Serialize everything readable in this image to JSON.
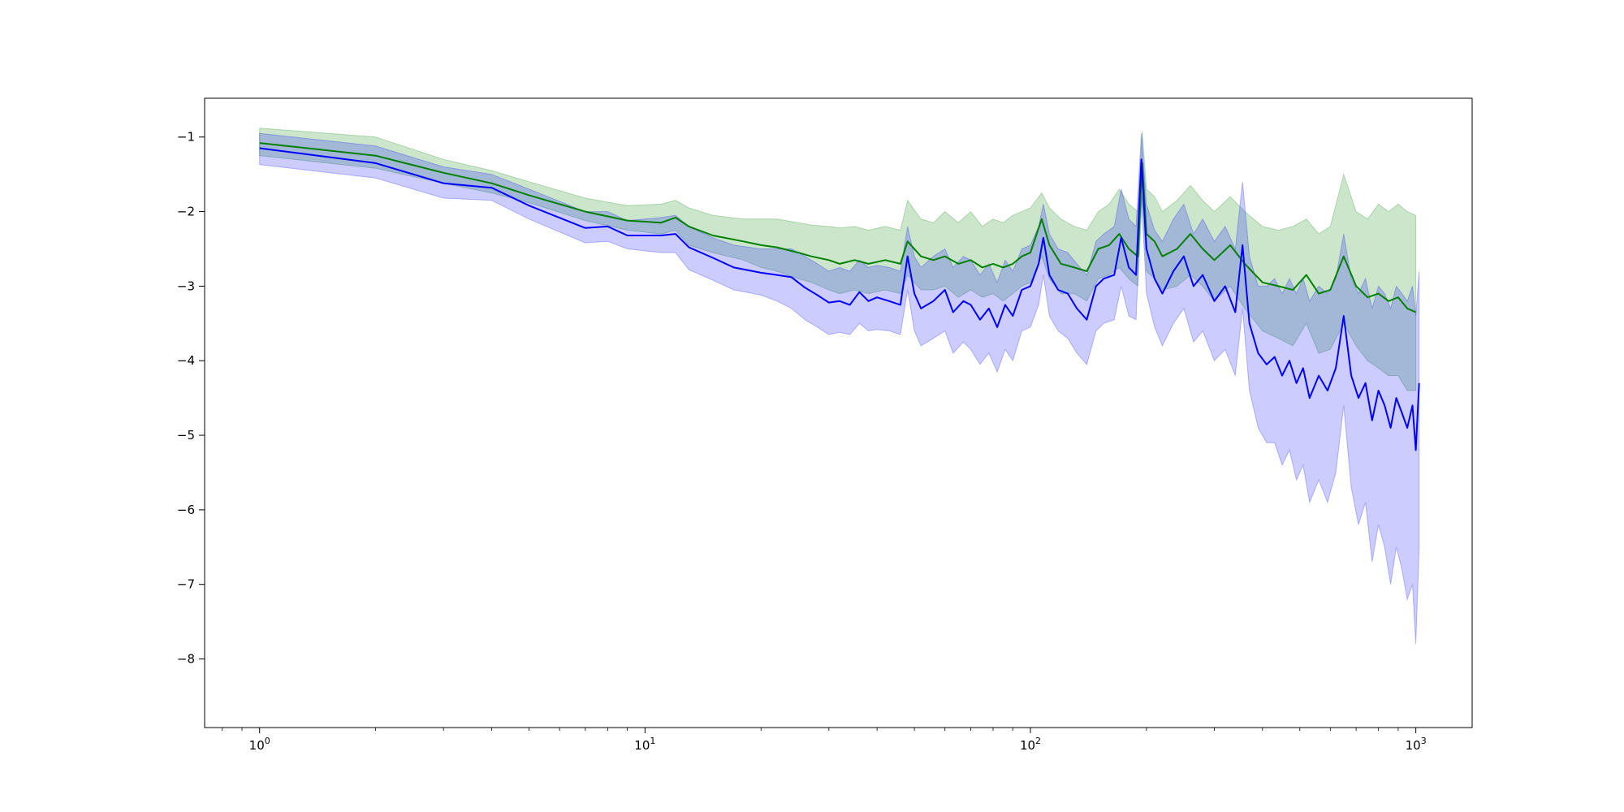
{
  "chart_data": {
    "type": "line",
    "title": "",
    "xlabel": "",
    "ylabel": "",
    "x_scale": "log",
    "xlim": [
      0.72,
      1400
    ],
    "ylim": [
      -8.92,
      -0.48
    ],
    "grid": false,
    "legend": "none",
    "x_ticks": [
      {
        "value": 1,
        "base": "10",
        "exp": "0"
      },
      {
        "value": 10,
        "base": "10",
        "exp": "1"
      },
      {
        "value": 100,
        "base": "10",
        "exp": "2"
      },
      {
        "value": 1000,
        "base": "10",
        "exp": "3"
      }
    ],
    "y_ticks": [
      {
        "value": -1,
        "label": "−1"
      },
      {
        "value": -2,
        "label": "−2"
      },
      {
        "value": -3,
        "label": "−3"
      },
      {
        "value": -4,
        "label": "−4"
      },
      {
        "value": -5,
        "label": "−5"
      },
      {
        "value": -6,
        "label": "−6"
      },
      {
        "value": -7,
        "label": "−7"
      },
      {
        "value": -8,
        "label": "−8"
      }
    ],
    "series": [
      {
        "color": "#008000",
        "band_color": "#008000",
        "band_opacity": 0.2,
        "points": [
          [
            1,
            -1.08,
            -0.88,
            -1.25
          ],
          [
            2,
            -1.25,
            -1.0,
            -1.42
          ],
          [
            3,
            -1.48,
            -1.3,
            -1.62
          ],
          [
            4,
            -1.62,
            -1.45,
            -1.75
          ],
          [
            5,
            -1.78,
            -1.6,
            -1.88
          ],
          [
            7,
            -2.0,
            -1.82,
            -2.12
          ],
          [
            9,
            -2.12,
            -1.92,
            -2.25
          ],
          [
            11,
            -2.15,
            -1.9,
            -2.3
          ],
          [
            12,
            -2.08,
            -1.85,
            -2.25
          ],
          [
            13,
            -2.2,
            -1.95,
            -2.45
          ],
          [
            15,
            -2.32,
            -2.05,
            -2.55
          ],
          [
            18,
            -2.4,
            -2.1,
            -2.65
          ],
          [
            20,
            -2.45,
            -2.1,
            -2.75
          ],
          [
            22,
            -2.48,
            -2.1,
            -2.8
          ],
          [
            25,
            -2.55,
            -2.15,
            -2.9
          ],
          [
            27,
            -2.6,
            -2.18,
            -2.95
          ],
          [
            30,
            -2.65,
            -2.2,
            -3.05
          ],
          [
            32,
            -2.7,
            -2.22,
            -3.1
          ],
          [
            35,
            -2.65,
            -2.2,
            -3.05
          ],
          [
            38,
            -2.7,
            -2.25,
            -3.1
          ],
          [
            42,
            -2.65,
            -2.2,
            -3.05
          ],
          [
            46,
            -2.7,
            -2.25,
            -3.1
          ],
          [
            48,
            -2.4,
            -1.85,
            -2.85
          ],
          [
            52,
            -2.6,
            -2.1,
            -3.05
          ],
          [
            56,
            -2.65,
            -2.15,
            -3.05
          ],
          [
            60,
            -2.6,
            -2.0,
            -3.0
          ],
          [
            65,
            -2.7,
            -2.15,
            -3.15
          ],
          [
            70,
            -2.65,
            -2.0,
            -3.05
          ],
          [
            75,
            -2.75,
            -2.2,
            -3.15
          ],
          [
            80,
            -2.7,
            -2.1,
            -3.1
          ],
          [
            85,
            -2.75,
            -2.15,
            -3.2
          ],
          [
            90,
            -2.7,
            -2.05,
            -3.1
          ],
          [
            95,
            -2.6,
            -2.0,
            -3.0
          ],
          [
            100,
            -2.55,
            -1.95,
            -2.95
          ],
          [
            107,
            -2.1,
            -1.75,
            -2.6
          ],
          [
            112,
            -2.45,
            -1.95,
            -2.9
          ],
          [
            120,
            -2.7,
            -2.1,
            -3.1
          ],
          [
            130,
            -2.75,
            -2.2,
            -3.1
          ],
          [
            140,
            -2.8,
            -2.25,
            -3.2
          ],
          [
            150,
            -2.5,
            -2.0,
            -2.9
          ],
          [
            160,
            -2.45,
            -1.9,
            -2.85
          ],
          [
            170,
            -2.3,
            -1.7,
            -2.75
          ],
          [
            180,
            -2.5,
            -1.9,
            -2.9
          ],
          [
            190,
            -2.6,
            -2.0,
            -3.0
          ],
          [
            195,
            -1.35,
            -0.92,
            -1.8
          ],
          [
            200,
            -2.3,
            -1.7,
            -2.8
          ],
          [
            210,
            -2.4,
            -1.8,
            -2.9
          ],
          [
            220,
            -2.6,
            -2.0,
            -3.05
          ],
          [
            240,
            -2.5,
            -1.85,
            -3.0
          ],
          [
            260,
            -2.3,
            -1.65,
            -2.85
          ],
          [
            280,
            -2.5,
            -1.85,
            -3.0
          ],
          [
            300,
            -2.65,
            -2.0,
            -3.2
          ],
          [
            330,
            -2.45,
            -1.8,
            -3.0
          ],
          [
            360,
            -2.7,
            -2.0,
            -3.3
          ],
          [
            400,
            -2.95,
            -2.2,
            -3.6
          ],
          [
            440,
            -3.0,
            -2.25,
            -3.7
          ],
          [
            480,
            -3.05,
            -2.2,
            -3.8
          ],
          [
            520,
            -2.85,
            -2.1,
            -3.5
          ],
          [
            560,
            -3.1,
            -2.3,
            -3.9
          ],
          [
            600,
            -3.05,
            -2.2,
            -3.85
          ],
          [
            650,
            -2.6,
            -1.5,
            -3.5
          ],
          [
            700,
            -3.0,
            -2.0,
            -3.8
          ],
          [
            750,
            -3.15,
            -2.1,
            -4.0
          ],
          [
            800,
            -3.1,
            -1.9,
            -4.1
          ],
          [
            850,
            -3.2,
            -2.0,
            -4.2
          ],
          [
            900,
            -3.15,
            -1.9,
            -4.2
          ],
          [
            950,
            -3.3,
            -2.0,
            -4.4
          ],
          [
            1000,
            -3.35,
            -2.05,
            -4.4
          ]
        ]
      },
      {
        "color": "#0000ff",
        "band_color": "#0000ff",
        "band_opacity": 0.2,
        "points": [
          [
            1,
            -1.15,
            -0.95,
            -1.37
          ],
          [
            2,
            -1.35,
            -1.12,
            -1.55
          ],
          [
            3,
            -1.62,
            -1.4,
            -1.82
          ],
          [
            4,
            -1.68,
            -1.5,
            -1.85
          ],
          [
            5,
            -1.92,
            -1.7,
            -2.1
          ],
          [
            7,
            -2.22,
            -2.0,
            -2.42
          ],
          [
            8,
            -2.2,
            -2.0,
            -2.4
          ],
          [
            9,
            -2.32,
            -2.12,
            -2.5
          ],
          [
            11,
            -2.32,
            -2.08,
            -2.55
          ],
          [
            12,
            -2.3,
            -2.05,
            -2.55
          ],
          [
            13,
            -2.48,
            -2.2,
            -2.78
          ],
          [
            15,
            -2.62,
            -2.35,
            -2.92
          ],
          [
            17,
            -2.75,
            -2.45,
            -3.05
          ],
          [
            20,
            -2.82,
            -2.5,
            -3.12
          ],
          [
            22,
            -2.85,
            -2.5,
            -3.2
          ],
          [
            24,
            -2.88,
            -2.5,
            -3.3
          ],
          [
            26,
            -3.02,
            -2.6,
            -3.45
          ],
          [
            28,
            -3.12,
            -2.7,
            -3.55
          ],
          [
            30,
            -3.22,
            -2.8,
            -3.65
          ],
          [
            32,
            -3.2,
            -2.75,
            -3.62
          ],
          [
            34,
            -3.25,
            -2.8,
            -3.65
          ],
          [
            36,
            -3.08,
            -2.65,
            -3.5
          ],
          [
            38,
            -3.2,
            -2.75,
            -3.6
          ],
          [
            40,
            -3.15,
            -2.72,
            -3.58
          ],
          [
            43,
            -3.2,
            -2.75,
            -3.6
          ],
          [
            46,
            -3.25,
            -2.8,
            -3.65
          ],
          [
            48,
            -2.6,
            -2.2,
            -3.05
          ],
          [
            50,
            -3.1,
            -2.6,
            -3.6
          ],
          [
            52,
            -3.3,
            -2.75,
            -3.8
          ],
          [
            56,
            -3.2,
            -2.6,
            -3.7
          ],
          [
            60,
            -3.05,
            -2.5,
            -3.6
          ],
          [
            63,
            -3.35,
            -2.75,
            -3.9
          ],
          [
            67,
            -3.2,
            -2.6,
            -3.75
          ],
          [
            70,
            -3.25,
            -2.65,
            -3.85
          ],
          [
            74,
            -3.45,
            -2.85,
            -4.05
          ],
          [
            78,
            -3.3,
            -2.7,
            -3.9
          ],
          [
            82,
            -3.55,
            -2.95,
            -4.15
          ],
          [
            86,
            -3.25,
            -2.65,
            -3.85
          ],
          [
            90,
            -3.4,
            -2.8,
            -4.0
          ],
          [
            95,
            -3.05,
            -2.5,
            -3.6
          ],
          [
            100,
            -3.0,
            -2.45,
            -3.55
          ],
          [
            105,
            -2.7,
            -2.2,
            -3.25
          ],
          [
            108,
            -2.35,
            -1.9,
            -2.85
          ],
          [
            112,
            -2.85,
            -2.3,
            -3.4
          ],
          [
            118,
            -3.05,
            -2.5,
            -3.6
          ],
          [
            125,
            -3.1,
            -2.55,
            -3.7
          ],
          [
            132,
            -3.3,
            -2.7,
            -3.9
          ],
          [
            140,
            -3.45,
            -2.85,
            -4.05
          ],
          [
            148,
            -3.0,
            -2.4,
            -3.6
          ],
          [
            155,
            -2.9,
            -2.3,
            -3.5
          ],
          [
            165,
            -2.85,
            -2.2,
            -3.45
          ],
          [
            172,
            -2.35,
            -1.7,
            -3.0
          ],
          [
            180,
            -2.75,
            -2.1,
            -3.4
          ],
          [
            188,
            -2.85,
            -2.2,
            -3.45
          ],
          [
            194,
            -1.3,
            -0.95,
            -1.8
          ],
          [
            200,
            -2.5,
            -1.9,
            -3.1
          ],
          [
            210,
            -2.9,
            -2.25,
            -3.55
          ],
          [
            220,
            -3.1,
            -2.4,
            -3.8
          ],
          [
            235,
            -2.8,
            -2.1,
            -3.5
          ],
          [
            250,
            -2.6,
            -1.9,
            -3.3
          ],
          [
            265,
            -3.0,
            -2.3,
            -3.75
          ],
          [
            280,
            -2.85,
            -2.1,
            -3.6
          ],
          [
            300,
            -3.2,
            -2.4,
            -4.0
          ],
          [
            320,
            -3.0,
            -2.2,
            -3.85
          ],
          [
            340,
            -3.35,
            -2.5,
            -4.2
          ],
          [
            355,
            -2.45,
            -1.6,
            -3.3
          ],
          [
            370,
            -3.5,
            -2.6,
            -4.4
          ],
          [
            390,
            -3.9,
            -3.0,
            -4.9
          ],
          [
            410,
            -4.05,
            -3.0,
            -5.1
          ],
          [
            430,
            -3.95,
            -2.9,
            -5.1
          ],
          [
            450,
            -4.2,
            -3.1,
            -5.4
          ],
          [
            470,
            -4.0,
            -2.9,
            -5.2
          ],
          [
            490,
            -4.3,
            -3.1,
            -5.6
          ],
          [
            510,
            -4.1,
            -2.9,
            -5.4
          ],
          [
            530,
            -4.5,
            -3.2,
            -5.9
          ],
          [
            560,
            -4.2,
            -3.0,
            -5.6
          ],
          [
            590,
            -4.4,
            -3.1,
            -5.9
          ],
          [
            620,
            -4.1,
            -2.9,
            -5.5
          ],
          [
            650,
            -3.4,
            -2.3,
            -4.6
          ],
          [
            680,
            -4.2,
            -2.9,
            -5.7
          ],
          [
            710,
            -4.5,
            -3.1,
            -6.2
          ],
          [
            740,
            -4.3,
            -2.9,
            -5.9
          ],
          [
            770,
            -4.8,
            -3.3,
            -6.7
          ],
          [
            800,
            -4.4,
            -3.0,
            -6.2
          ],
          [
            830,
            -4.6,
            -3.1,
            -6.5
          ],
          [
            860,
            -4.9,
            -3.3,
            -7.0
          ],
          [
            890,
            -4.5,
            -3.0,
            -6.5
          ],
          [
            920,
            -4.7,
            -3.1,
            -6.8
          ],
          [
            950,
            -4.9,
            -3.2,
            -7.2
          ],
          [
            980,
            -4.6,
            -3.0,
            -7.0
          ],
          [
            1000,
            -5.2,
            -3.4,
            -7.8
          ],
          [
            1020,
            -4.3,
            -2.8,
            -6.5
          ]
        ]
      }
    ]
  }
}
